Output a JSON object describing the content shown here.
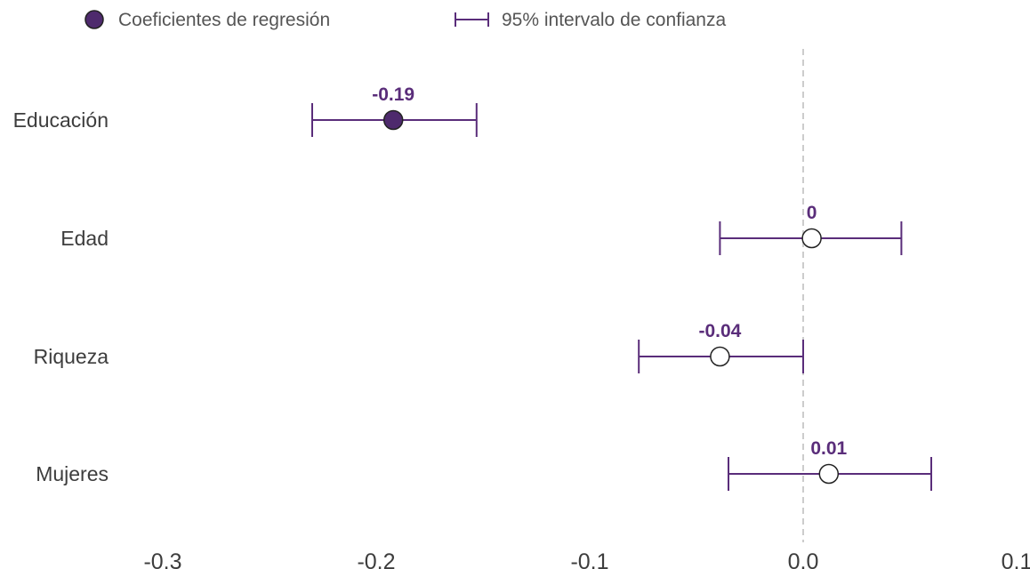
{
  "legend": {
    "point_label": "Coeficientes de regresión",
    "interval_label": "95% intervalo de confianza"
  },
  "colors": {
    "accent": "#5a2d7a",
    "point_fill_significant": "#4e2a6d",
    "point_fill_default": "#ffffff",
    "zero_line": "#cccccc"
  },
  "chart_data": {
    "type": "scatter",
    "subtype": "coefficient-plot",
    "title": "",
    "xlabel": "",
    "ylabel": "",
    "xlim": [
      -0.3,
      0.1
    ],
    "x_ticks": [
      -0.3,
      -0.2,
      -0.1,
      0.0,
      0.1
    ],
    "x_tick_labels": [
      "-0.3",
      "-0.2",
      "-0.1",
      "0.0",
      "0.1"
    ],
    "reference_line": 0,
    "grid": false,
    "legend_position": "top-left",
    "categories": [
      "Educación",
      "Edad",
      "Riqueza",
      "Mujeres"
    ],
    "series": [
      {
        "values": [
          -0.192,
          0.004,
          -0.039,
          0.012
        ],
        "ci_low": [
          -0.23,
          -0.039,
          -0.077,
          -0.035
        ],
        "ci_high": [
          -0.153,
          0.046,
          0.0,
          0.06
        ],
        "labels": [
          "-0.19",
          "0",
          "-0.04",
          "0.01"
        ],
        "filled": [
          true,
          false,
          false,
          false
        ]
      }
    ]
  }
}
